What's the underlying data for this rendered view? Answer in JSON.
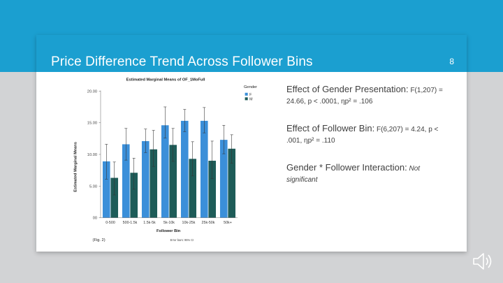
{
  "slide": {
    "title": "Price Difference Trend Across Follower Bins",
    "number": "8"
  },
  "findings": [
    {
      "head": "Effect of Gender Presentation:",
      "stat_line1": "F(1,207) =",
      "stat_line2": "24.66, p < .0001, ηp² = .106"
    },
    {
      "head": "Effect of Follower Bin:",
      "stat_line1": "F(6,207) = 4.24, p <",
      "stat_line2": ".001, ηp² = .110"
    },
    {
      "head": "Gender * Follower Interaction:",
      "stat_line1": "Not",
      "stat_line2": "significant"
    }
  ],
  "chart_data": {
    "type": "bar",
    "title": "Estimated Marginal Means of OF_1MoFull",
    "xlabel": "Follower Bin",
    "ylabel": "Estimated Marginal Means",
    "categories": [
      "0-500",
      "500-1.5k",
      "1.5k-5k",
      "5k-10k",
      "10k-25k",
      "25k-50k",
      "50k+"
    ],
    "ylim": [
      0,
      20
    ],
    "yticks": [
      "00",
      "5.00",
      "10.00",
      "15.00",
      "20.00"
    ],
    "legend_title": "Gender",
    "series": [
      {
        "name": "F",
        "color": "#3b8fd9",
        "values": [
          8.9,
          11.6,
          12.1,
          14.6,
          15.3,
          15.3,
          12.3
        ],
        "ci_low": [
          6.1,
          9.1,
          10.3,
          12.6,
          13.6,
          13.4,
          10.1
        ],
        "ci_high": [
          11.6,
          14.1,
          14.0,
          17.5,
          17.1,
          17.4,
          14.6
        ]
      },
      {
        "name": "M",
        "color": "#1e5c58",
        "values": [
          6.3,
          7.1,
          10.8,
          11.5,
          9.3,
          9.0,
          10.9
        ],
        "ci_low": [
          3.6,
          4.5,
          8.1,
          8.9,
          6.6,
          6.2,
          8.6
        ],
        "ci_high": [
          8.8,
          9.4,
          13.8,
          14.1,
          12.0,
          12.1,
          13.1
        ]
      }
    ],
    "fig_label": "(Fig. 2)",
    "footnote": "Error bars: 95% CI",
    "grid": false,
    "legend_position": "right"
  }
}
